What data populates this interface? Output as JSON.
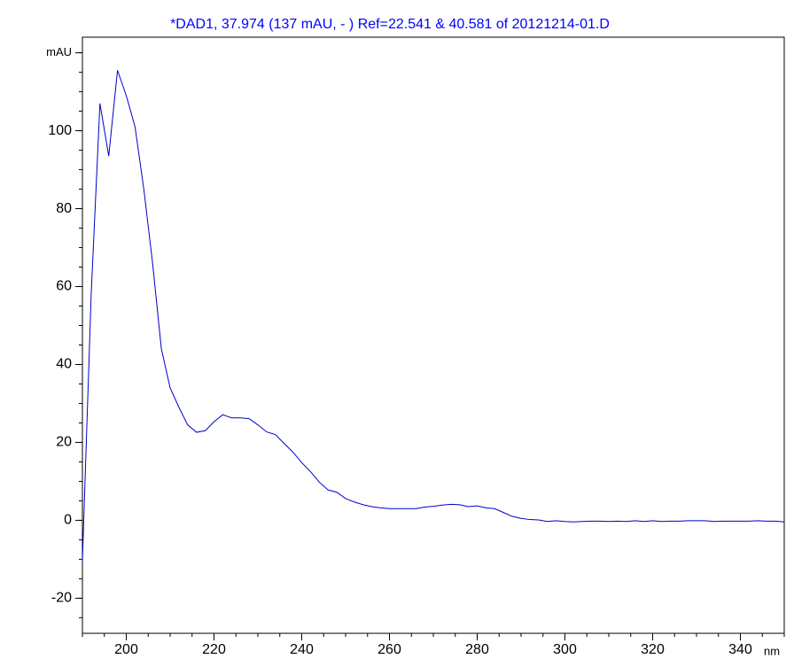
{
  "chart_data": {
    "type": "line",
    "title": "*DAD1, 37.974 (137 mAU, - ) Ref=22.541 & 40.581 of 20121214-01.D",
    "xlabel": "nm",
    "x": [
      190,
      192,
      194,
      196,
      198,
      200,
      202,
      204,
      206,
      208,
      210,
      212,
      214,
      216,
      218,
      220,
      222,
      224,
      226,
      228,
      230,
      232,
      234,
      236,
      238,
      240,
      242,
      244,
      246,
      248,
      250,
      252,
      254,
      256,
      258,
      260,
      262,
      264,
      266,
      268,
      270,
      272,
      274,
      276,
      278,
      280,
      282,
      284,
      286,
      288,
      290,
      292,
      294,
      296,
      298,
      300,
      302,
      304,
      306,
      308,
      310,
      312,
      314,
      316,
      318,
      320,
      322,
      324,
      326,
      328,
      330,
      332,
      334,
      336,
      338,
      340,
      342,
      344,
      346,
      348,
      350
    ],
    "series": [
      {
        "color": "#0000cc",
        "values": [
          -10.5,
          58,
          107,
          93.5,
          115.5,
          109,
          101,
          85,
          66,
          44,
          34,
          29,
          24.5,
          22.6,
          23,
          25.3,
          27.1,
          26.3,
          26.3,
          26.1,
          24.5,
          22.7,
          22,
          19.7,
          17.5,
          14.8,
          12.5,
          9.8,
          7.8,
          7.2,
          5.6,
          4.7,
          4,
          3.5,
          3.2,
          3,
          3,
          3,
          3,
          3.4,
          3.6,
          3.9,
          4.1,
          4,
          3.5,
          3.7,
          3.2,
          3,
          2,
          1,
          0.5,
          0.2,
          0.1,
          -0.3,
          -0.1,
          -0.3,
          -0.4,
          -0.3,
          -0.2,
          -0.2,
          -0.3,
          -0.2,
          -0.3,
          -0.1,
          -0.3,
          -0.1,
          -0.3,
          -0.2,
          -0.2,
          -0.1,
          -0.1,
          -0.1,
          -0.3,
          -0.2,
          -0.2,
          -0.2,
          -0.2,
          -0.1,
          -0.2,
          -0.2,
          -0.4
        ]
      }
    ],
    "xlim": [
      190,
      350
    ],
    "xticks": [
      200,
      220,
      240,
      260,
      280,
      300,
      320,
      340
    ],
    "ylim": [
      -29,
      124
    ],
    "yticks": [
      -20,
      0,
      20,
      40,
      60,
      80,
      100,
      {
        "value": 120,
        "label": "mAU"
      }
    ],
    "minor_ticks": {
      "x": 5,
      "y": 5
    },
    "title_color": "#0000ff"
  }
}
